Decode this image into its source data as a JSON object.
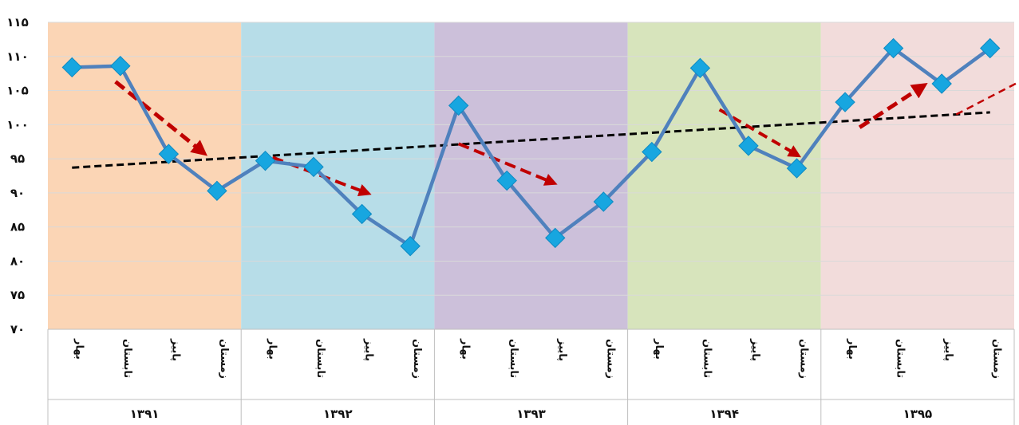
{
  "chart_data": {
    "type": "line",
    "title": "",
    "xlabel": "",
    "ylabel": "",
    "ylim": [
      70,
      115
    ],
    "yticks": [
      {
        "value": 70,
        "label": "۷۰"
      },
      {
        "value": 75,
        "label": "۷۵"
      },
      {
        "value": 80,
        "label": "۸۰"
      },
      {
        "value": 85,
        "label": "۸۵"
      },
      {
        "value": 90,
        "label": "۹۰"
      },
      {
        "value": 95,
        "label": "۹۵"
      },
      {
        "value": 100,
        "label": "۱۰۰"
      },
      {
        "value": 105,
        "label": "۱۰۵"
      },
      {
        "value": 110,
        "label": "۱۱۰"
      },
      {
        "value": 115,
        "label": "۱۱۵"
      }
    ],
    "grid": true,
    "legend": "none",
    "groups": [
      {
        "label": "۱۳۹۱",
        "color": "#fbd5b5"
      },
      {
        "label": "۱۳۹۲",
        "color": "#b7dde8"
      },
      {
        "label": "۱۳۹۳",
        "color": "#ccc0da"
      },
      {
        "label": "۱۳۹۴",
        "color": "#d7e4bc"
      },
      {
        "label": "۱۳۹۵",
        "color": "#f2dcdb"
      }
    ],
    "seasons": [
      "بهار",
      "تابستان",
      "پاییز",
      "زمستان"
    ],
    "series": [
      {
        "values": [
          108.4,
          108.6,
          95.7,
          90.3,
          94.7,
          93.8,
          86.9,
          82.2,
          102.8,
          91.8,
          83.4,
          88.7,
          96.0,
          108.3,
          96.9,
          93.6,
          103.3,
          111.2,
          106.0,
          111.2
        ],
        "color": "#4f81bd",
        "marker_color": "#17a6e0"
      }
    ],
    "trendline": {
      "start": 93.7,
      "end": 101.8,
      "color": "#000000",
      "style": "dashed"
    },
    "arrows_color": "#c00000"
  }
}
